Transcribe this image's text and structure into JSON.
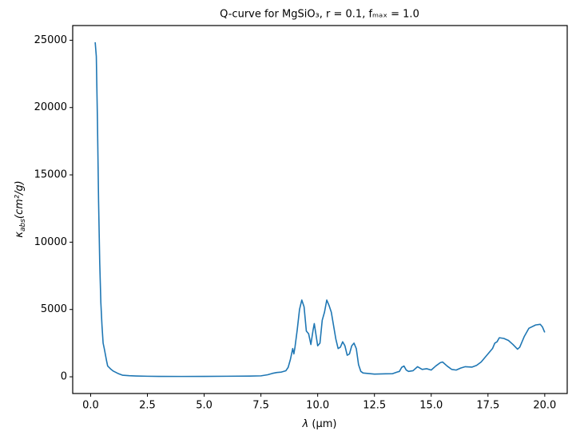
{
  "chart_data": {
    "type": "line",
    "title": "Q-curve for MgSiO₃, r = 0.1, fₘₐₓ = 1.0",
    "xlabel": {
      "symbol": "λ",
      "unit": "(μm)"
    },
    "ylabel": {
      "symbol": "κ",
      "subscript": "abs",
      "unit": "(cm²/g)"
    },
    "x": [
      0.2,
      0.25,
      0.3,
      0.35,
      0.4,
      0.45,
      0.5,
      0.55,
      0.6,
      0.7,
      0.75,
      0.9,
      1.0,
      1.2,
      1.4,
      1.7,
      2.0,
      2.5,
      3.0,
      4.0,
      5.0,
      6.0,
      7.0,
      7.5,
      7.8,
      8.0,
      8.2,
      8.4,
      8.6,
      8.7,
      8.8,
      8.9,
      8.95,
      9.0,
      9.1,
      9.2,
      9.3,
      9.4,
      9.5,
      9.6,
      9.7,
      9.8,
      9.85,
      9.9,
      10.0,
      10.1,
      10.2,
      10.3,
      10.4,
      10.5,
      10.6,
      10.7,
      10.8,
      10.9,
      11.0,
      11.1,
      11.2,
      11.3,
      11.4,
      11.5,
      11.6,
      11.7,
      11.8,
      11.9,
      12.0,
      12.5,
      13.0,
      13.3,
      13.5,
      13.6,
      13.7,
      13.8,
      13.9,
      14.0,
      14.2,
      14.4,
      14.6,
      14.8,
      15.0,
      15.2,
      15.4,
      15.5,
      15.7,
      15.9,
      16.1,
      16.3,
      16.5,
      16.8,
      17.0,
      17.2,
      17.5,
      17.7,
      17.8,
      17.9,
      18.0,
      18.2,
      18.4,
      18.6,
      18.8,
      18.9,
      19.1,
      19.3,
      19.6,
      19.8,
      19.9,
      20.0
    ],
    "series": [
      {
        "color": "#1f77b4",
        "values": [
          24850,
          23800,
          19000,
          13000,
          8500,
          5500,
          3800,
          2500,
          2100,
          1200,
          800,
          550,
          420,
          250,
          120,
          80,
          60,
          40,
          30,
          25,
          30,
          40,
          50,
          70,
          150,
          250,
          320,
          350,
          450,
          700,
          1300,
          2100,
          1700,
          2200,
          3500,
          5000,
          5700,
          5200,
          3400,
          3200,
          2400,
          3500,
          3950,
          3400,
          2300,
          2500,
          4200,
          4800,
          5700,
          5300,
          4800,
          3800,
          2800,
          2100,
          2200,
          2600,
          2300,
          1600,
          1700,
          2300,
          2500,
          2100,
          900,
          400,
          280,
          200,
          220,
          230,
          350,
          400,
          700,
          800,
          500,
          400,
          450,
          750,
          550,
          600,
          500,
          800,
          1050,
          1100,
          800,
          550,
          500,
          650,
          750,
          720,
          850,
          1100,
          1700,
          2100,
          2500,
          2600,
          2900,
          2850,
          2700,
          2400,
          2050,
          2200,
          3000,
          3600,
          3850,
          3900,
          3700,
          3300
        ]
      }
    ],
    "xlim": [
      -0.79,
      20.99
    ],
    "ylim": [
      -1242,
      26092
    ],
    "xticks": [
      {
        "value": 0,
        "label": "0.0"
      },
      {
        "value": 2.5,
        "label": "2.5"
      },
      {
        "value": 5,
        "label": "5.0"
      },
      {
        "value": 7.5,
        "label": "7.5"
      },
      {
        "value": 10,
        "label": "10.0"
      },
      {
        "value": 12.5,
        "label": "12.5"
      },
      {
        "value": 15,
        "label": "15.0"
      },
      {
        "value": 17.5,
        "label": "17.5"
      },
      {
        "value": 20,
        "label": "20.0"
      }
    ],
    "yticks": [
      0,
      5000,
      10000,
      15000,
      20000,
      25000
    ],
    "grid": false
  }
}
